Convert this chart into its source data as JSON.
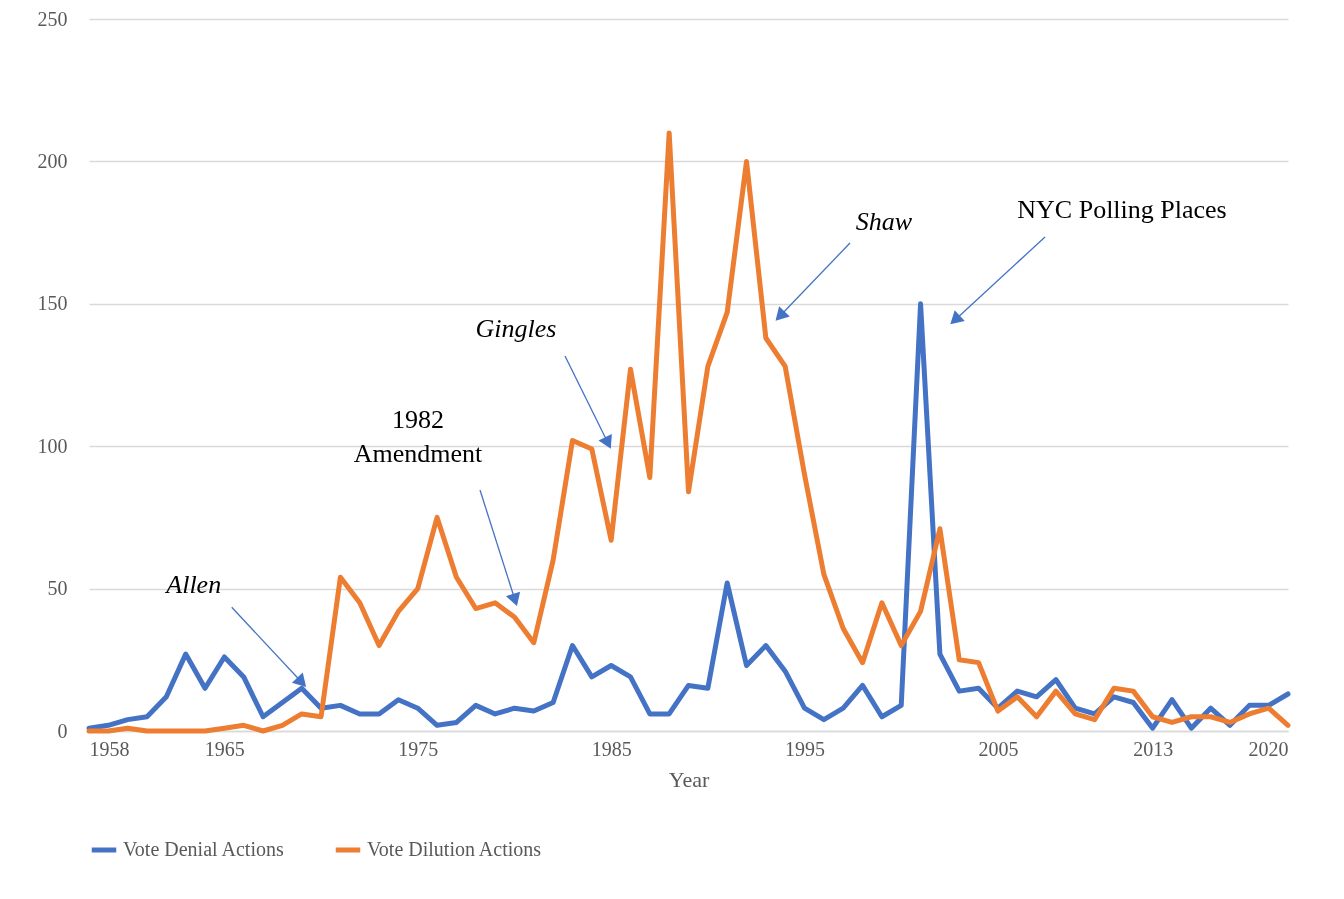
{
  "chart_data": {
    "type": "line",
    "xlabel": "Year",
    "x": [
      1958,
      1959,
      1960,
      1961,
      1962,
      1963,
      1964,
      1965,
      1966,
      1967,
      1968,
      1969,
      1970,
      1971,
      1972,
      1973,
      1974,
      1975,
      1976,
      1977,
      1978,
      1979,
      1980,
      1981,
      1982,
      1983,
      1984,
      1985,
      1986,
      1987,
      1988,
      1989,
      1990,
      1991,
      1992,
      1993,
      1994,
      1995,
      1996,
      1997,
      1998,
      1999,
      2000,
      2001,
      2002,
      2003,
      2004,
      2005,
      2006,
      2007,
      2008,
      2009,
      2010,
      2011,
      2012,
      2013,
      2014,
      2015,
      2016,
      2017,
      2018,
      2019,
      2020
    ],
    "series": [
      {
        "name": "Vote Denial Actions",
        "color": "#4472c4",
        "values": [
          1,
          2,
          4,
          5,
          12,
          27,
          15,
          26,
          19,
          5,
          10,
          15,
          8,
          9,
          6,
          6,
          11,
          8,
          2,
          3,
          9,
          6,
          8,
          7,
          10,
          30,
          19,
          23,
          19,
          6,
          6,
          16,
          15,
          52,
          23,
          30,
          21,
          8,
          4,
          8,
          16,
          5,
          9,
          150,
          27,
          14,
          15,
          8,
          14,
          12,
          18,
          8,
          6,
          12,
          10,
          1,
          11,
          1,
          8,
          2,
          9,
          9,
          13
        ]
      },
      {
        "name": "Vote Dilution Actions",
        "color": "#ed7d31",
        "values": [
          0,
          0,
          1,
          0,
          0,
          0,
          0,
          1,
          2,
          0,
          2,
          6,
          5,
          54,
          45,
          30,
          42,
          50,
          75,
          54,
          43,
          45,
          40,
          31,
          60,
          102,
          99,
          67,
          127,
          89,
          210,
          84,
          128,
          147,
          200,
          138,
          128,
          90,
          55,
          36,
          24,
          45,
          30,
          42,
          71,
          25,
          24,
          7,
          12,
          5,
          14,
          6,
          4,
          15,
          14,
          5,
          3,
          5,
          5,
          3,
          6,
          8,
          2
        ]
      }
    ],
    "xlim": [
      1958,
      2020
    ],
    "xticks": [
      1958,
      1965,
      1975,
      1985,
      1995,
      2005,
      2013,
      2020
    ],
    "ylim": [
      0,
      250
    ],
    "yticks": [
      0,
      50,
      100,
      150,
      200,
      250
    ],
    "grid": "y",
    "legend": "bottom",
    "line_style": "solid",
    "annotations": [
      {
        "text": "Allen",
        "x": 1969,
        "y": 15
      },
      "1982\nAmendment",
      "Gingles",
      "Shaw",
      "NYC Polling Places"
    ]
  }
}
